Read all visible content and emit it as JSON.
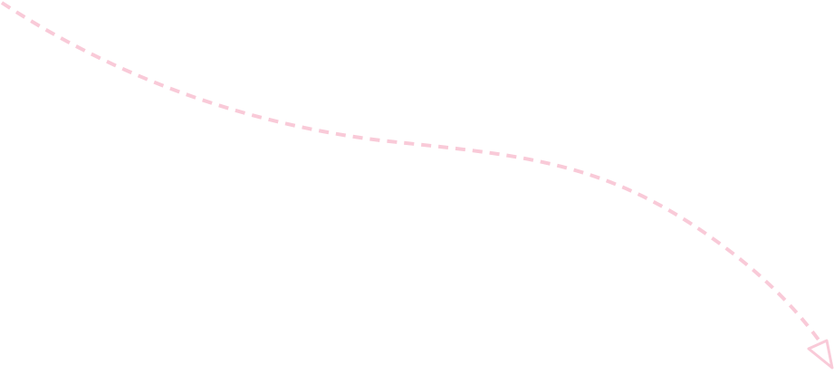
{
  "connector": {
    "kind": "dashed-curved-arrow",
    "direction": "to-bottom-right",
    "stroke_color": "#f9cad8",
    "arrowhead": "open-triangle"
  }
}
